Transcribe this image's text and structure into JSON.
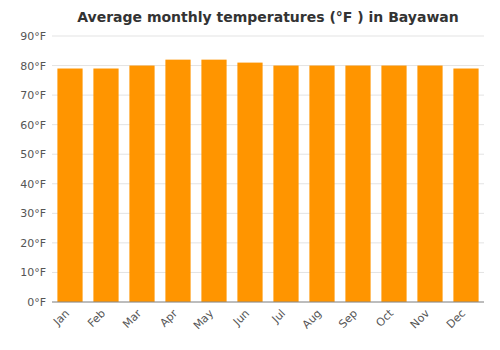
{
  "chart_data": {
    "type": "bar",
    "title": "Average monthly temperatures (°F ) in Bayawan",
    "categories": [
      "Jan",
      "Feb",
      "Mar",
      "Apr",
      "May",
      "Jun",
      "Jul",
      "Aug",
      "Sep",
      "Oct",
      "Nov",
      "Dec"
    ],
    "values": [
      79,
      79,
      80,
      82,
      82,
      81,
      80,
      80,
      80,
      80,
      80,
      79
    ],
    "color": "#FF9500",
    "ylim": [
      0,
      90
    ],
    "yticks": [
      {
        "value": 0,
        "label": "0°F"
      },
      {
        "value": 10,
        "label": "10°F"
      },
      {
        "value": 20,
        "label": "20°F"
      },
      {
        "value": 30,
        "label": "30°F"
      },
      {
        "value": 40,
        "label": "40°F"
      },
      {
        "value": 50,
        "label": "50°F"
      },
      {
        "value": 60,
        "label": "60°F"
      },
      {
        "value": 70,
        "label": "70°F"
      },
      {
        "value": 80,
        "label": "80°F"
      },
      {
        "value": 90,
        "label": "90°F"
      }
    ],
    "grid": true
  }
}
